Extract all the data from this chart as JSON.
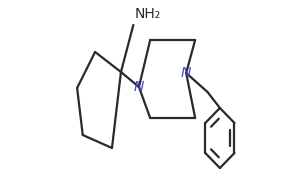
{
  "bg_color": "#ffffff",
  "line_color": "#2a2a2a",
  "line_width": 1.6,
  "label_NH2": "NH₂",
  "label_N1": "N",
  "label_N2": "N",
  "font_size_NH2": 10,
  "font_size_N": 10,
  "fig_w": 3.06,
  "fig_h": 1.72,
  "dpi": 100
}
